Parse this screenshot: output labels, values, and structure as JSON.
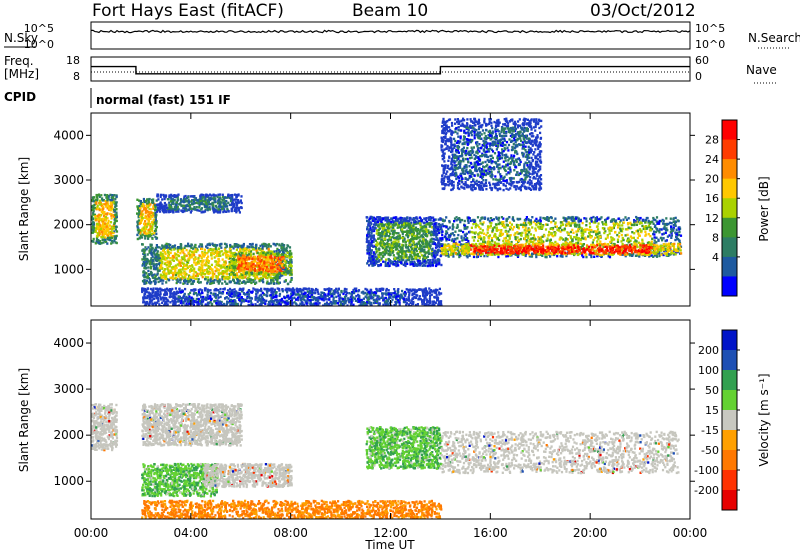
{
  "header": {
    "radar": "Fort Hays East (fitACF)",
    "beam": "Beam 10",
    "date": "03/Oct/2012"
  },
  "aux_panels": {
    "nsky_label": "N.Sky",
    "nsearch_label": "N.Search",
    "noise_ticks_left": [
      "10^5",
      "10^0"
    ],
    "noise_ticks_right": [
      "10^5",
      "10^0"
    ],
    "freq_label": "Freq.",
    "freq_unit": "[MHz]",
    "freq_ticks": [
      "18",
      "8"
    ],
    "nave_label": "Nave",
    "nave_ticks": [
      "60",
      "0"
    ],
    "cpid_label": "CPID",
    "cpid_value": "normal (fast) 151 IF"
  },
  "power_panel": {
    "ylabel": "Slant Range [km]",
    "yticks": [
      "4000",
      "3000",
      "2000",
      "1000"
    ],
    "colorbar_label": "Power [dB]",
    "colorbar_ticks": [
      "28",
      "24",
      "20",
      "16",
      "12",
      "8",
      "4"
    ],
    "colorbar_colors": [
      "#ff0000",
      "#ff3c00",
      "#ff8c00",
      "#ffc800",
      "#aad200",
      "#3c9632",
      "#2d7d64",
      "#1e5aa0",
      "#0000ff"
    ]
  },
  "velocity_panel": {
    "ylabel": "Slant Range [km]",
    "yticks": [
      "4000",
      "3000",
      "2000",
      "1000"
    ],
    "colorbar_label": "Velocity [m s⁻¹]",
    "colorbar_ticks": [
      "200",
      "100",
      "50",
      "15",
      "-15",
      "-50",
      "-100",
      "-200"
    ],
    "colorbar_colors": [
      "#0014c8",
      "#1e50b4",
      "#32a050",
      "#64d232",
      "#c8c8c0",
      "#ffa000",
      "#ff7800",
      "#ff3200",
      "#e60000"
    ],
    "ground_scatter_color": "#c6c6be"
  },
  "x_axis": {
    "ticks": [
      "00:00",
      "04:00",
      "08:00",
      "12:00",
      "16:00",
      "20:00",
      "00:00"
    ],
    "label": "Time UT"
  },
  "chart_data": {
    "type": "heatmap",
    "x_range_hours": [
      0,
      24
    ],
    "y_range_km": [
      180,
      4500
    ],
    "frequency_MHz": [
      {
        "from": 0,
        "to": 1.8,
        "value": 14
      },
      {
        "from": 1.8,
        "to": 14.0,
        "value": 11
      },
      {
        "from": 14.0,
        "to": 24,
        "value": 14
      }
    ],
    "cpid": "normal (fast) 151 IF",
    "power_regions": [
      {
        "t0": 0.0,
        "t1": 1.0,
        "r0": 1600,
        "r1": 2700,
        "power_dB": 20
      },
      {
        "t0": 1.8,
        "t1": 2.6,
        "r0": 1700,
        "r1": 2600,
        "power_dB": 20
      },
      {
        "t0": 2.6,
        "t1": 6.0,
        "r0": 2300,
        "r1": 2700,
        "power_dB": 8
      },
      {
        "t0": 2.0,
        "t1": 8.0,
        "r0": 700,
        "r1": 1600,
        "power_dB": 18
      },
      {
        "t0": 5.5,
        "t1": 8.0,
        "r0": 900,
        "r1": 1400,
        "power_dB": 24
      },
      {
        "t0": 11.0,
        "t1": 14.0,
        "r0": 1100,
        "r1": 2200,
        "power_dB": 12
      },
      {
        "t0": 14.0,
        "t1": 23.6,
        "r0": 1300,
        "r1": 2200,
        "power_dB": 16
      },
      {
        "t0": 14.0,
        "t1": 23.6,
        "r0": 1350,
        "r1": 1600,
        "power_dB": 28
      },
      {
        "t0": 14.0,
        "t1": 18.0,
        "r0": 2800,
        "r1": 4400,
        "power_dB": 6
      },
      {
        "t0": 2.0,
        "t1": 14.0,
        "r0": 180,
        "r1": 600,
        "power_dB": 4
      }
    ],
    "velocity_regions": [
      {
        "t0": 0.0,
        "t1": 1.0,
        "r0": 1700,
        "r1": 2700,
        "velocity": 0,
        "ground_scatter": true
      },
      {
        "t0": 2.0,
        "t1": 6.0,
        "r0": 1800,
        "r1": 2700,
        "velocity": 0,
        "ground_scatter": true
      },
      {
        "t0": 2.0,
        "t1": 5.0,
        "r0": 700,
        "r1": 1400,
        "velocity": 40
      },
      {
        "t0": 4.5,
        "t1": 8.0,
        "r0": 900,
        "r1": 1400,
        "velocity": 0,
        "ground_scatter": true
      },
      {
        "t0": 11.0,
        "t1": 14.0,
        "r0": 1300,
        "r1": 2200,
        "velocity": 40
      },
      {
        "t0": 14.0,
        "t1": 23.5,
        "r0": 1200,
        "r1": 2100,
        "velocity": 0,
        "ground_scatter": true
      },
      {
        "t0": 2.0,
        "t1": 14.0,
        "r0": 180,
        "r1": 600,
        "velocity": -60
      }
    ]
  }
}
